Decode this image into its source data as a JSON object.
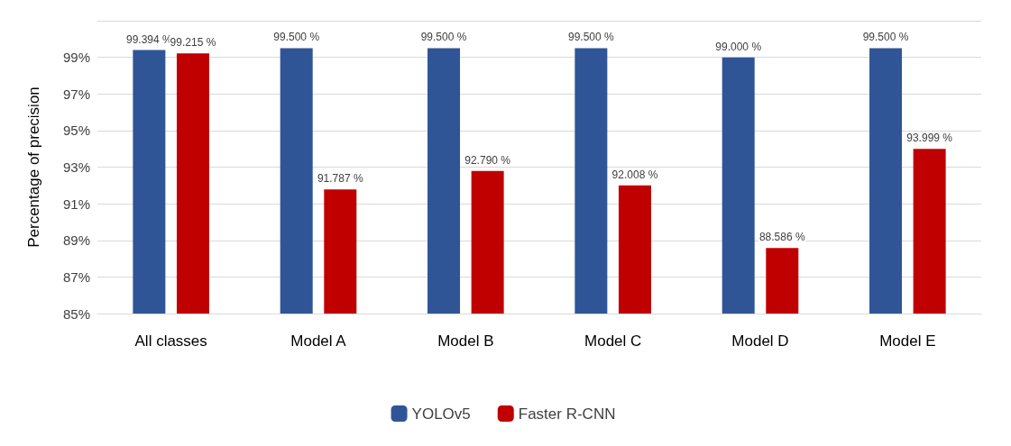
{
  "chart_data": {
    "type": "bar",
    "ylabel": "Percentage of precision",
    "categories": [
      "All classes",
      "Model A",
      "Model B",
      "Model C",
      "Model D",
      "Model E"
    ],
    "series": [
      {
        "name": "YOLOv5",
        "color": "#2f5597",
        "values": [
          99.394,
          99.5,
          99.5,
          99.5,
          99.0,
          99.5
        ],
        "value_labels": [
          "99.394 %",
          "99.500 %",
          "99.500 %",
          "99.500 %",
          "99.000 %",
          "99.500 %"
        ]
      },
      {
        "name": "Faster R-CNN",
        "color": "#c00000",
        "values": [
          99.215,
          91.787,
          92.79,
          92.008,
          88.586,
          93.999
        ],
        "value_labels": [
          "99.215 %",
          "91.787 %",
          "92.790 %",
          "92.008 %",
          "88.586 %",
          "93.999 %"
        ]
      }
    ],
    "ylim": [
      85,
      101
    ],
    "yticks": [
      {
        "value": 85,
        "label": "85%"
      },
      {
        "value": 87,
        "label": "87%"
      },
      {
        "value": 89,
        "label": "89%"
      },
      {
        "value": 91,
        "label": "91%"
      },
      {
        "value": 93,
        "label": "93%"
      },
      {
        "value": 95,
        "label": "95%"
      },
      {
        "value": 97,
        "label": "97%"
      },
      {
        "value": 99,
        "label": "99%"
      },
      {
        "value": 101,
        "label": null
      }
    ],
    "grid": "y",
    "legend": "bottom"
  }
}
